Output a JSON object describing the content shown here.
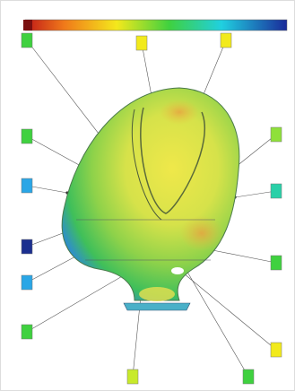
{
  "callouts": [
    {
      "color": "#3fd13f"
    },
    {
      "color": "#f2ea1c"
    },
    {
      "color": "#f2ea1c"
    },
    {
      "color": "#3fd13f"
    },
    {
      "color": "#8fe03a"
    },
    {
      "color": "#2aa6e6"
    },
    {
      "color": "#2ad0a8"
    },
    {
      "color": "#1b2f8f"
    },
    {
      "color": "#3fd13f"
    },
    {
      "color": "#2aa6e6"
    },
    {
      "color": "#3fd13f"
    },
    {
      "color": "#f2ea1c"
    },
    {
      "color": "#c8ea2a"
    },
    {
      "color": "#3fd13f"
    }
  ]
}
